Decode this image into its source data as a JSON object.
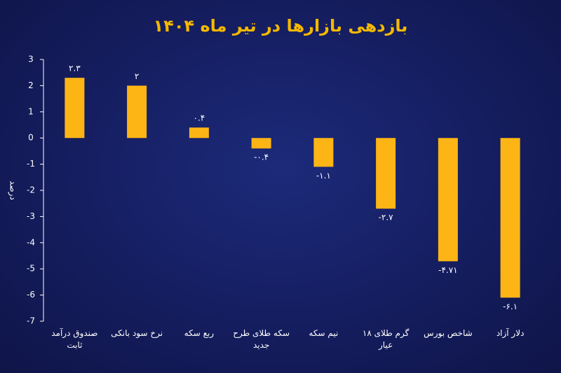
{
  "chart_data": {
    "type": "bar",
    "title": "بازدهی بازارها در تیر ماه ۱۴۰۴",
    "y_label": "درصد",
    "categories": [
      "صندوق درآمد ثابت",
      "نرخ سود بانکی",
      "ربع سکه",
      "سکه طلای طرح جدید",
      "نیم سکه",
      "گرم طلای ۱۸ عیار",
      "شاخص بورس",
      "دلار آزاد"
    ],
    "values": [
      2.3,
      2,
      0.4,
      -0.4,
      -1.1,
      -2.7,
      -4.71,
      -6.1
    ],
    "value_labels": [
      "۲.۳",
      "۲",
      "۰.۴",
      "-۰.۴",
      "-۱.۱",
      "-۲.۷",
      "-۴.۷۱",
      "-۶.۱"
    ],
    "color": "#fdb515",
    "ylim": [
      -7,
      3
    ],
    "yticks": [
      3,
      2,
      1,
      0,
      -1,
      -2,
      -3,
      -4,
      -5,
      -6,
      -7
    ]
  }
}
